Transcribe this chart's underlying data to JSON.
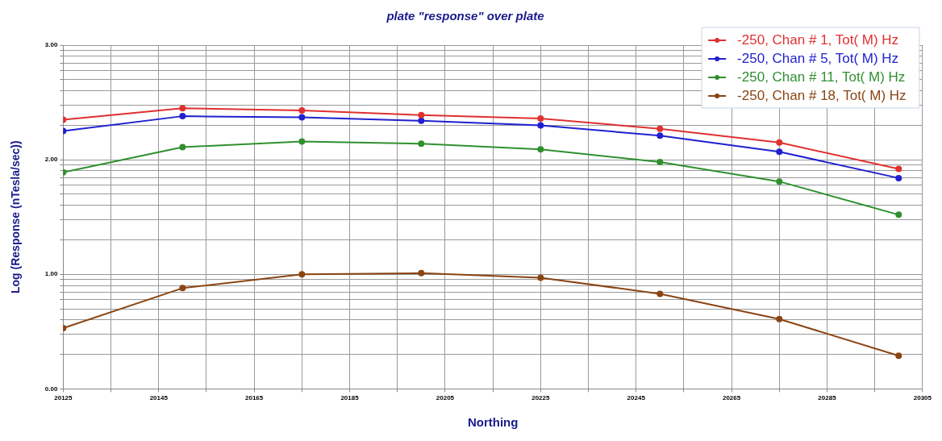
{
  "chart_data": {
    "type": "line",
    "title": "plate \"response\" over plate",
    "xlabel": "Northing",
    "ylabel": "Log (Response (nTesla/sec))",
    "x": [
      20125,
      20150,
      20175,
      20200,
      20225,
      20250,
      20275,
      20300
    ],
    "series": [
      {
        "name": "-250, Chan # 1, Tot( M) Hz",
        "color": "#e03030",
        "values": [
          2.35,
          2.45,
          2.43,
          2.39,
          2.36,
          2.27,
          2.15,
          1.92
        ]
      },
      {
        "name": "-250, Chan # 5, Tot( M) Hz",
        "color": "#2020d0",
        "values": [
          2.25,
          2.38,
          2.37,
          2.34,
          2.3,
          2.21,
          2.07,
          1.84
        ]
      },
      {
        "name": "-250, Chan # 11, Tot( M) Hz",
        "color": "#309030",
        "values": [
          1.89,
          2.11,
          2.16,
          2.14,
          2.09,
          1.98,
          1.81,
          1.52
        ]
      },
      {
        "name": "-250, Chan # 18, Tot( M) Hz",
        "color": "#8b4513",
        "values": [
          0.53,
          0.88,
          1.0,
          1.01,
          0.97,
          0.83,
          0.61,
          0.29
        ]
      }
    ],
    "xlim": [
      20125,
      20305
    ],
    "xticks": [
      20125,
      {
        "value": 20135,
        "label": null
      },
      20145,
      {
        "value": 20155,
        "label": null
      },
      20165,
      {
        "value": 20175,
        "label": null
      },
      20185,
      {
        "value": 20195,
        "label": null
      },
      20205,
      {
        "value": 20215,
        "label": null
      },
      20225,
      {
        "value": 20235,
        "label": null
      },
      20245,
      {
        "value": 20255,
        "label": null
      },
      20265,
      {
        "value": 20275,
        "label": null
      },
      20285,
      {
        "value": 20295,
        "label": null
      },
      20305
    ],
    "ylim": [
      0,
      3
    ],
    "yticks": [
      {
        "value": 0,
        "label": "0.00"
      },
      {
        "value": 0.301,
        "label": null
      },
      {
        "value": 0.477,
        "label": null
      },
      {
        "value": 0.602,
        "label": null
      },
      {
        "value": 0.699,
        "label": null
      },
      {
        "value": 0.778,
        "label": null
      },
      {
        "value": 0.845,
        "label": null
      },
      {
        "value": 0.903,
        "label": null
      },
      {
        "value": 0.954,
        "label": null
      },
      {
        "value": 1,
        "label": "1.00"
      },
      {
        "value": 1.301,
        "label": null
      },
      {
        "value": 1.477,
        "label": null
      },
      {
        "value": 1.602,
        "label": null
      },
      {
        "value": 1.699,
        "label": null
      },
      {
        "value": 1.778,
        "label": null
      },
      {
        "value": 1.845,
        "label": null
      },
      {
        "value": 1.903,
        "label": null
      },
      {
        "value": 1.954,
        "label": null
      },
      {
        "value": 2,
        "label": "2.00"
      },
      {
        "value": 2.301,
        "label": null
      },
      {
        "value": 2.477,
        "label": null
      },
      {
        "value": 2.602,
        "label": null
      },
      {
        "value": 2.699,
        "label": null
      },
      {
        "value": 2.778,
        "label": null
      },
      {
        "value": 2.845,
        "label": null
      },
      {
        "value": 2.903,
        "label": null
      },
      {
        "value": 2.954,
        "label": null
      },
      {
        "value": 3,
        "label": "3.00"
      }
    ],
    "grid": true,
    "legend": "top right",
    "marker": "circle",
    "line_style": "solid"
  }
}
